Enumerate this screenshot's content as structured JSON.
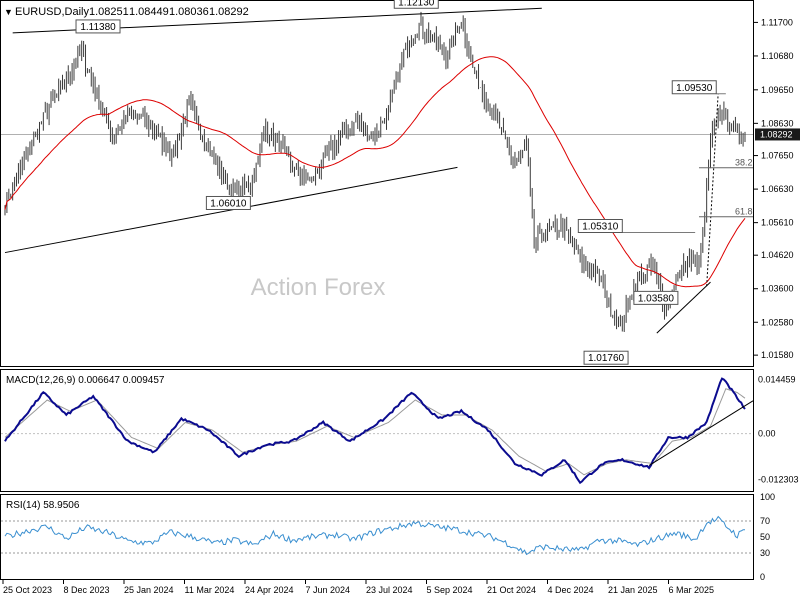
{
  "header": {
    "symbol": "EURUSD,Daily",
    "ohlc": [
      "1.08251",
      "1.08449",
      "1.08036",
      "1.08292"
    ]
  },
  "watermark": "Action Forex",
  "colors": {
    "bars": "#3b3b3b",
    "ma": "#dd0000",
    "macd": "#0b0b8f",
    "signal": "#9a9a9a",
    "rsi": "#3a8fd0",
    "level_line": "#7a7a7a",
    "trendline": "#000000",
    "price_tag_bg": "#1a1a1a"
  },
  "chart_data": [
    {
      "type": "bar",
      "panel": "price",
      "x_ticks": [
        "25 Oct 2023",
        "8 Dec 2023",
        "25 Jan 2024",
        "11 Mar 2024",
        "24 Apr 2024",
        "7 Jun 2024",
        "23 Jul 2024",
        "5 Sep 2024",
        "21 Oct 2024",
        "4 Dec 2024",
        "21 Jan 2025",
        "6 Mar 2025"
      ],
      "y_ticks": [
        1.0158,
        1.0258,
        1.036,
        1.0462,
        1.0561,
        1.0663,
        1.0765,
        1.0863,
        1.0965,
        1.1068,
        1.117
      ],
      "y_tick_labels": [
        "1.01580",
        "1.02580",
        "1.03600",
        "1.04620",
        "1.05610",
        "1.06630",
        "1.07650",
        "1.08630",
        "1.09650",
        "1.10680",
        "1.11700"
      ],
      "ylim": [
        1.0128,
        1.1226
      ],
      "last_price": "1.08292",
      "close_anchors": [
        [
          0,
          1.062
        ],
        [
          10,
          1.075
        ],
        [
          20,
          1.088
        ],
        [
          30,
          1.098
        ],
        [
          40,
          1.108
        ],
        [
          48,
          1.095
        ],
        [
          56,
          1.082
        ],
        [
          64,
          1.089
        ],
        [
          72,
          1.088
        ],
        [
          80,
          1.082
        ],
        [
          88,
          1.077
        ],
        [
          96,
          1.092
        ],
        [
          104,
          1.082
        ],
        [
          112,
          1.072
        ],
        [
          120,
          1.065
        ],
        [
          128,
          1.067
        ],
        [
          136,
          1.085
        ],
        [
          144,
          1.079
        ],
        [
          152,
          1.071
        ],
        [
          160,
          1.069
        ],
        [
          168,
          1.077
        ],
        [
          176,
          1.083
        ],
        [
          184,
          1.087
        ],
        [
          192,
          1.082
        ],
        [
          200,
          1.09
        ],
        [
          208,
          1.108
        ],
        [
          216,
          1.116
        ],
        [
          222,
          1.113
        ],
        [
          230,
          1.107
        ],
        [
          238,
          1.118
        ],
        [
          244,
          1.103
        ],
        [
          250,
          1.095
        ],
        [
          258,
          1.085
        ],
        [
          266,
          1.074
        ],
        [
          272,
          1.079
        ],
        [
          276,
          1.05
        ],
        [
          282,
          1.053
        ],
        [
          290,
          1.055
        ],
        [
          296,
          1.05
        ],
        [
          302,
          1.043
        ],
        [
          310,
          1.04
        ],
        [
          316,
          1.03
        ],
        [
          322,
          1.025
        ],
        [
          326,
          1.034
        ],
        [
          332,
          1.04
        ],
        [
          338,
          1.043
        ],
        [
          344,
          1.031
        ],
        [
          350,
          1.038
        ],
        [
          356,
          1.045
        ],
        [
          362,
          1.042
        ],
        [
          364,
          1.052
        ],
        [
          368,
          1.08
        ],
        [
          372,
          1.09
        ],
        [
          376,
          1.088
        ],
        [
          380,
          1.085
        ],
        [
          386,
          1.082
        ]
      ],
      "bar_range": 0.006,
      "bar_count": 387,
      "moving_average_period": 55,
      "annotations": [
        {
          "label": "1.11380",
          "bar": 60,
          "price": 1.1138
        },
        {
          "label": "1.12130",
          "bar": 226,
          "price": 1.1213
        },
        {
          "label": "1.06010",
          "bar": 128,
          "price": 1.0601
        },
        {
          "label": "1.09530",
          "bar": 371,
          "price": 1.0953
        },
        {
          "label": "1.05310",
          "bar": 322,
          "price": 1.0531
        },
        {
          "label": "1.03580",
          "bar": 351,
          "price": 1.0358
        },
        {
          "label": "1.01760",
          "bar": 325,
          "price": 1.0176
        }
      ],
      "fib_levels": [
        {
          "label": "38.2",
          "price": 1.0728
        },
        {
          "label": "61.8",
          "price": 1.0579
        }
      ],
      "trendlines": [
        {
          "from": [
            4,
            1.1138
          ],
          "to": [
            280,
            1.1213
          ]
        },
        {
          "from": [
            0,
            1.047
          ],
          "to": [
            236,
            1.0729
          ]
        },
        {
          "from": [
            340,
            1.0225
          ],
          "to": [
            368,
            1.038
          ]
        }
      ]
    },
    {
      "type": "line",
      "panel": "macd",
      "title": "MACD(12,26,9) 0.006647 0.009457",
      "y_tick_labels": [
        "0.014459",
        "0.00",
        "-0.012303"
      ],
      "y_ticks": [
        0.014459,
        0,
        -0.012303
      ],
      "ylim": [
        -0.0148,
        0.0165
      ],
      "series": [
        {
          "name": "MACD",
          "anchors": [
            [
              0,
              -0.002
            ],
            [
              20,
              0.011
            ],
            [
              32,
              0.005
            ],
            [
              46,
              0.01
            ],
            [
              64,
              -0.002
            ],
            [
              78,
              -0.005
            ],
            [
              92,
              0.004
            ],
            [
              106,
              0.001
            ],
            [
              122,
              -0.006
            ],
            [
              136,
              -0.003
            ],
            [
              150,
              -0.002
            ],
            [
              166,
              0.003
            ],
            [
              180,
              -0.002
            ],
            [
              198,
              0.004
            ],
            [
              212,
              0.011
            ],
            [
              226,
              0.004
            ],
            [
              238,
              0.006
            ],
            [
              252,
              0.001
            ],
            [
              266,
              -0.008
            ],
            [
              280,
              -0.011
            ],
            [
              292,
              -0.007
            ],
            [
              300,
              -0.013
            ],
            [
              312,
              -0.008
            ],
            [
              322,
              -0.007
            ],
            [
              336,
              -0.009
            ],
            [
              346,
              -0.001
            ],
            [
              356,
              -0.001
            ],
            [
              366,
              0.003
            ],
            [
              374,
              0.015
            ],
            [
              380,
              0.011
            ],
            [
              386,
              0.0066
            ]
          ]
        },
        {
          "name": "Signal",
          "anchors": [
            [
              0,
              -0.001
            ],
            [
              22,
              0.009
            ],
            [
              34,
              0.006
            ],
            [
              48,
              0.009
            ],
            [
              66,
              -0.001
            ],
            [
              80,
              -0.004
            ],
            [
              94,
              0.003
            ],
            [
              108,
              0.001
            ],
            [
              124,
              -0.005
            ],
            [
              138,
              -0.003
            ],
            [
              152,
              -0.002
            ],
            [
              168,
              0.002
            ],
            [
              182,
              -0.001
            ],
            [
              200,
              0.003
            ],
            [
              214,
              0.009
            ],
            [
              228,
              0.005
            ],
            [
              240,
              0.005
            ],
            [
              254,
              0.001
            ],
            [
              268,
              -0.006
            ],
            [
              282,
              -0.01
            ],
            [
              294,
              -0.008
            ],
            [
              302,
              -0.011
            ],
            [
              314,
              -0.008
            ],
            [
              324,
              -0.007
            ],
            [
              338,
              -0.008
            ],
            [
              348,
              -0.002
            ],
            [
              358,
              -0.001
            ],
            [
              368,
              0.002
            ],
            [
              376,
              0.012
            ],
            [
              382,
              0.011
            ],
            [
              386,
              0.0095
            ]
          ]
        }
      ],
      "trendline": {
        "from": [
          336,
          -0.0085
        ],
        "to": [
          386,
          0.0088
        ]
      }
    },
    {
      "type": "line",
      "panel": "rsi",
      "title": "RSI(14) 58.9506",
      "y_tick_labels": [
        "100",
        "70",
        "50",
        "30",
        "0"
      ],
      "y_ticks": [
        100,
        70,
        50,
        30,
        0
      ],
      "ylim": [
        0,
        100
      ],
      "levels": [
        70,
        30
      ],
      "series": [
        {
          "name": "RSI",
          "anchors": [
            [
              0,
              50
            ],
            [
              12,
              58
            ],
            [
              22,
              63
            ],
            [
              32,
              48
            ],
            [
              42,
              62
            ],
            [
              54,
              55
            ],
            [
              64,
              45
            ],
            [
              76,
              42
            ],
            [
              86,
              56
            ],
            [
              98,
              50
            ],
            [
              110,
              42
            ],
            [
              120,
              46
            ],
            [
              130,
              40
            ],
            [
              140,
              54
            ],
            [
              150,
              46
            ],
            [
              160,
              50
            ],
            [
              172,
              53
            ],
            [
              182,
              47
            ],
            [
              194,
              57
            ],
            [
              204,
              62
            ],
            [
              214,
              68
            ],
            [
              224,
              63
            ],
            [
              234,
              60
            ],
            [
              244,
              55
            ],
            [
              254,
              50
            ],
            [
              264,
              40
            ],
            [
              272,
              30
            ],
            [
              280,
              38
            ],
            [
              290,
              35
            ],
            [
              300,
              33
            ],
            [
              310,
              46
            ],
            [
              320,
              45
            ],
            [
              330,
              40
            ],
            [
              340,
              48
            ],
            [
              350,
              55
            ],
            [
              360,
              47
            ],
            [
              366,
              68
            ],
            [
              372,
              72
            ],
            [
              378,
              60
            ],
            [
              382,
              52
            ],
            [
              386,
              58.95
            ]
          ]
        }
      ]
    }
  ]
}
